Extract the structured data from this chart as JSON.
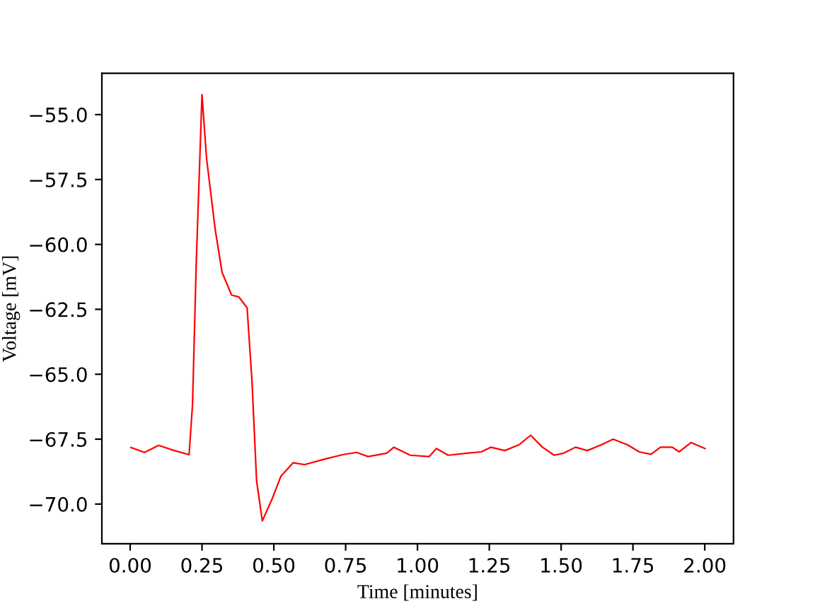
{
  "chart_data": {
    "type": "line",
    "xlabel": "Time [minutes]",
    "ylabel": "Voltage [mV]",
    "marker": "none",
    "line_style": "solid",
    "grid": false,
    "legend": false,
    "xlim": [
      -0.0985,
      2.1
    ],
    "ylim": [
      -71.53,
      -53.41
    ],
    "xticks": [
      {
        "value": 0,
        "label": "0.00"
      },
      {
        "value": 0.25,
        "label": "0.25"
      },
      {
        "value": 0.5,
        "label": "0.50"
      },
      {
        "value": 0.75,
        "label": "0.75"
      },
      {
        "value": 1.0,
        "label": "1.00"
      },
      {
        "value": 1.25,
        "label": "1.25"
      },
      {
        "value": 1.5,
        "label": "1.50"
      },
      {
        "value": 1.75,
        "label": "1.75"
      },
      {
        "value": 2.0,
        "label": "2.00"
      }
    ],
    "yticks": [
      {
        "value": -55,
        "label": "−55.0"
      },
      {
        "value": -57.5,
        "label": "−57.5"
      },
      {
        "value": -60,
        "label": "−60.0"
      },
      {
        "value": -62.5,
        "label": "−62.5"
      },
      {
        "value": -65,
        "label": "−65.0"
      },
      {
        "value": -67.5,
        "label": "−67.5"
      },
      {
        "value": -70,
        "label": "−70.0"
      }
    ],
    "series": [
      {
        "color": "#ff0000",
        "x": [
          0.003,
          0.05,
          0.099,
          0.148,
          0.205,
          0.217,
          0.23,
          0.25,
          0.266,
          0.296,
          0.32,
          0.353,
          0.378,
          0.407,
          0.424,
          0.44,
          0.46,
          0.493,
          0.525,
          0.567,
          0.607,
          0.673,
          0.739,
          0.788,
          0.828,
          0.893,
          0.918,
          0.975,
          1.041,
          1.066,
          1.107,
          1.172,
          1.222,
          1.255,
          1.304,
          1.353,
          1.394,
          1.435,
          1.476,
          1.509,
          1.55,
          1.591,
          1.64,
          1.681,
          1.731,
          1.772,
          1.813,
          1.846,
          1.887,
          1.911,
          1.952,
          2.001
        ],
        "values": [
          -67.82,
          -68.01,
          -67.74,
          -67.92,
          -68.1,
          -66.18,
          -60.71,
          -54.23,
          -56.7,
          -59.43,
          -61.08,
          -61.95,
          -62.02,
          -62.44,
          -65.27,
          -69.1,
          -70.65,
          -69.83,
          -68.92,
          -68.41,
          -68.48,
          -68.28,
          -68.1,
          -68.01,
          -68.17,
          -68.04,
          -67.81,
          -68.12,
          -68.17,
          -67.86,
          -68.12,
          -68.04,
          -67.99,
          -67.81,
          -67.94,
          -67.72,
          -67.35,
          -67.81,
          -68.12,
          -68.04,
          -67.81,
          -67.94,
          -67.72,
          -67.5,
          -67.72,
          -67.99,
          -68.08,
          -67.81,
          -67.81,
          -67.99,
          -67.63,
          -67.86
        ]
      }
    ]
  }
}
